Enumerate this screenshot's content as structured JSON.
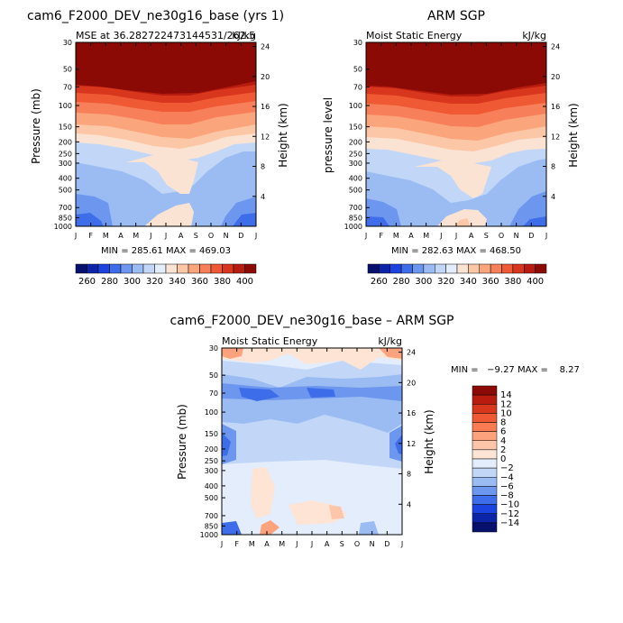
{
  "chart_data": [
    {
      "type": "heatmap",
      "title": "cam6_F2000_DEV_ne30g16_base (yrs 1)",
      "subtitle_left": "MSE at 36.282722473144531/262.5",
      "subtitle_right": "kJ/kg",
      "ylabel": "Pressure (mb)",
      "ylabel_right": "Height (km)",
      "x_ticks": [
        "J",
        "F",
        "M",
        "A",
        "M",
        "J",
        "J",
        "A",
        "S",
        "O",
        "N",
        "D",
        "J"
      ],
      "y_ticks": [
        "30",
        "50",
        "70",
        "100",
        "150",
        "200",
        "250",
        "300",
        "400",
        "500",
        "700",
        "850",
        "1000"
      ],
      "height_ticks": [
        "24",
        "20",
        "16",
        "12",
        "8",
        "4"
      ],
      "min_max_text": "MIN = 285.61  MAX = 469.03",
      "colorbar_ticks": [
        "260",
        "280",
        "300",
        "320",
        "340",
        "360",
        "380",
        "400"
      ]
    },
    {
      "type": "heatmap",
      "title": "ARM SGP",
      "subtitle_left": "Moist Static Energy",
      "subtitle_right": "kJ/kg",
      "ylabel": "pressure level",
      "ylabel_right": "Height (km)",
      "x_ticks": [
        "J",
        "F",
        "M",
        "A",
        "M",
        "J",
        "J",
        "A",
        "S",
        "O",
        "N",
        "D",
        "J"
      ],
      "y_ticks": [
        "30",
        "50",
        "70",
        "100",
        "150",
        "200",
        "250",
        "300",
        "400",
        "500",
        "700",
        "850",
        "1000"
      ],
      "height_ticks": [
        "24",
        "20",
        "16",
        "12",
        "8",
        "4"
      ],
      "min_max_text": "MIN = 282.63  MAX = 468.50",
      "colorbar_ticks": [
        "260",
        "280",
        "300",
        "320",
        "340",
        "360",
        "380",
        "400"
      ]
    },
    {
      "type": "heatmap",
      "title": "cam6_F2000_DEV_ne30g16_base – ARM SGP",
      "subtitle_left": "Moist Static Energy",
      "subtitle_right": "kJ/kg",
      "ylabel": "Pressure (mb)",
      "ylabel_right": "Height (km)",
      "x_ticks": [
        "J",
        "F",
        "M",
        "A",
        "M",
        "J",
        "J",
        "A",
        "S",
        "O",
        "N",
        "D",
        "J"
      ],
      "y_ticks": [
        "30",
        "50",
        "70",
        "100",
        "150",
        "200",
        "250",
        "300",
        "400",
        "500",
        "700",
        "850",
        "1000"
      ],
      "height_ticks": [
        "24",
        "20",
        "16",
        "12",
        "8",
        "4"
      ],
      "min_max_text": "MIN =   −9.27 MAX =    8.27",
      "colorbar_ticks": [
        "14",
        "12",
        "10",
        "8",
        "6",
        "4",
        "2",
        "0",
        "−2",
        "−4",
        "−6",
        "−8",
        "−10",
        "−12",
        "−14"
      ]
    }
  ],
  "colors": {
    "abs_scale": [
      "#08106e",
      "#0b24a8",
      "#1a43e0",
      "#3d6de8",
      "#6d97ee",
      "#9bbcf3",
      "#c2d7f7",
      "#e3edfb",
      "#fbe3d3",
      "#fcc7a7",
      "#fba57c",
      "#f7805a",
      "#ef5a34",
      "#d9361e",
      "#b81c0f",
      "#8c0a05"
    ],
    "diff_scale": [
      "#8c0a05",
      "#b81c0f",
      "#d9361e",
      "#ef5a34",
      "#fb7c52",
      "#fca37e",
      "#fdc6ab",
      "#fde4d4",
      "#e3edfb",
      "#c2d7f7",
      "#9bbcf3",
      "#6d97ee",
      "#3d6de8",
      "#1a43e0",
      "#0b24a8",
      "#08106e"
    ]
  }
}
